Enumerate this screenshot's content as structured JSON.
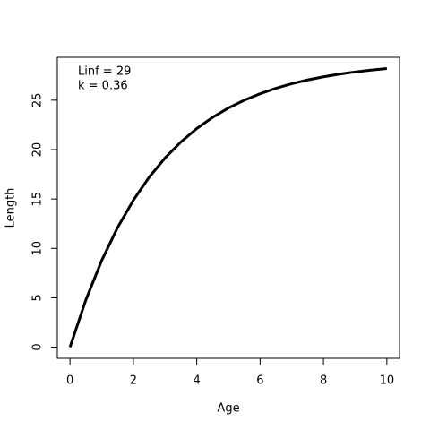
{
  "chart_data": {
    "type": "line",
    "x_label": "Age",
    "y_label": "Length",
    "annotations": [
      "Linf = 29",
      "k = 0.36"
    ],
    "x": [
      0,
      0.5,
      1,
      1.5,
      2,
      2.5,
      3,
      3.5,
      4,
      4.5,
      5,
      5.5,
      6,
      6.5,
      7,
      7.5,
      8,
      8.5,
      9,
      9.5,
      10
    ],
    "series": [
      {
        "color": "#000000",
        "values": [
          0,
          4.78,
          8.77,
          12.1,
          14.88,
          17.21,
          19.15,
          20.77,
          22.13,
          23.26,
          24.21,
          25.0,
          25.65,
          26.21,
          26.67,
          27.05,
          27.37,
          27.64,
          27.86,
          28.05,
          28.21
        ]
      }
    ],
    "xlim": [
      -0.4,
      10.4
    ],
    "ylim": [
      -1.13,
      29.34
    ],
    "xticks": [
      0,
      2,
      4,
      6,
      8,
      10
    ],
    "yticks": [
      0,
      5,
      10,
      15,
      20,
      25
    ]
  }
}
